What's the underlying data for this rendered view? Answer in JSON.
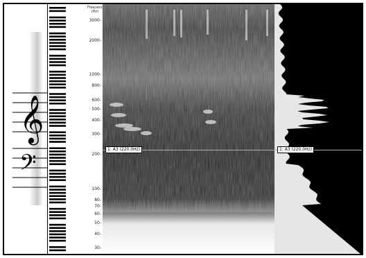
{
  "axis": {
    "title_line1": "Frequency",
    "title_line2": "(Hz)",
    "ticks": [
      {
        "label": "3000-",
        "hz": 3000
      },
      {
        "label": "2000-",
        "hz": 2000
      },
      {
        "label": "1000-",
        "hz": 1000
      },
      {
        "label": "800-",
        "hz": 800
      },
      {
        "label": "600-",
        "hz": 600
      },
      {
        "label": "500-",
        "hz": 500
      },
      {
        "label": "400-",
        "hz": 400
      },
      {
        "label": "300-",
        "hz": 300
      },
      {
        "label": "200-",
        "hz": 200
      },
      {
        "label": "100-",
        "hz": 100
      },
      {
        "label": "80-",
        "hz": 80
      },
      {
        "label": "70-",
        "hz": 70
      },
      {
        "label": "60-",
        "hz": 60
      },
      {
        "label": "50-",
        "hz": 50
      },
      {
        "label": "40-",
        "hz": 40
      },
      {
        "label": "30-",
        "hz": 30
      }
    ]
  },
  "cursor": {
    "label_spectrogram": "1: A3 (220.0Hz)",
    "label_spectrum": "1: A3 (220.0Hz)",
    "hz": 220
  },
  "colors": {
    "cursor_line": "#b0b0b0",
    "spectrum_fill": "#e6e6e6",
    "frame": "#000000"
  },
  "icons": {
    "treble_clef": "treble-clef-icon",
    "bass_clef": "bass-clef-icon"
  }
}
